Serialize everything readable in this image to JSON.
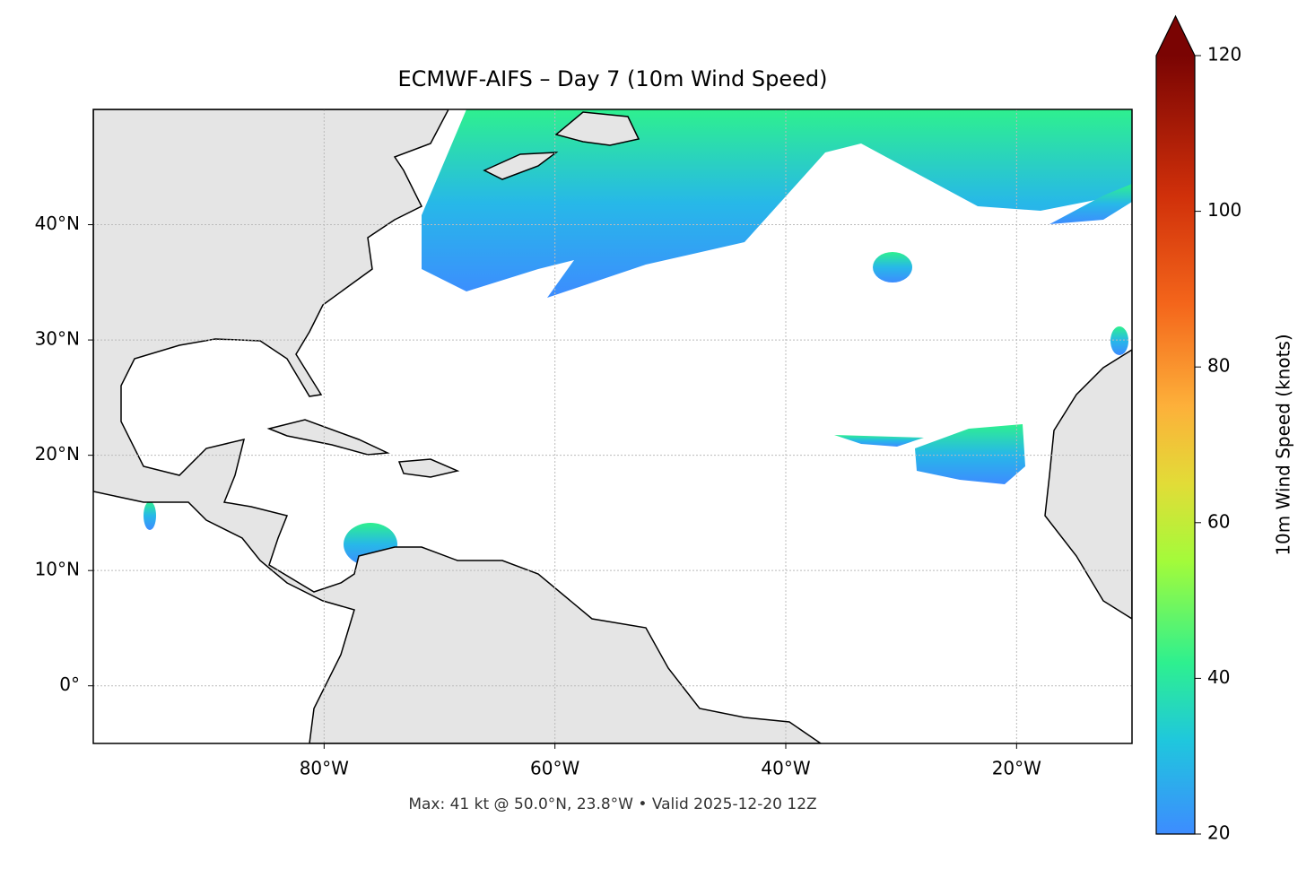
{
  "header": {
    "title": "ECMWF-AIFS – Day 7 (10m Wind Speed)",
    "footer": "Max: 41 kt @ 50.0°N, 23.8°W • Valid 2025-12-20 12Z"
  },
  "map": {
    "xlim": [
      -100,
      -10
    ],
    "ylim": [
      -5,
      50
    ],
    "xticks": [
      {
        "value": -80,
        "label": "80°W"
      },
      {
        "value": -60,
        "label": "60°W"
      },
      {
        "value": -40,
        "label": "40°W"
      },
      {
        "value": -20,
        "label": "20°W"
      }
    ],
    "yticks": [
      {
        "value": 0,
        "label": "0°"
      },
      {
        "value": 10,
        "label": "10°N"
      },
      {
        "value": 20,
        "label": "20°N"
      },
      {
        "value": 30,
        "label": "30°N"
      },
      {
        "value": 40,
        "label": "40°N"
      }
    ],
    "grid": true
  },
  "colorbar": {
    "label": "10m Wind Speed (knots)",
    "lim": [
      20,
      120
    ],
    "ticks": [
      20,
      40,
      60,
      80,
      100,
      120
    ]
  }
}
